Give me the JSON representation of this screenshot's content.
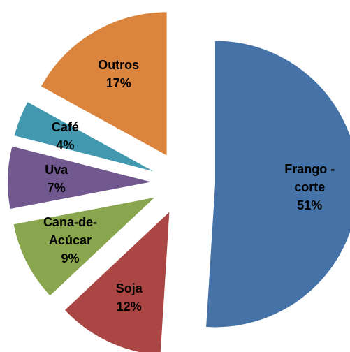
{
  "chart_data": {
    "type": "pie",
    "categories": [
      "Frango - corte",
      "Soja",
      "Cana-de-Acúcar",
      "Uva",
      "Café",
      "Outros"
    ],
    "values": [
      51,
      12,
      9,
      7,
      4,
      17
    ],
    "value_labels": [
      "51%",
      "12%",
      "9%",
      "7%",
      "4%",
      "17%"
    ],
    "colors": [
      "#4572a7",
      "#aa4643",
      "#89a54e",
      "#71588f",
      "#4198af",
      "#db843d"
    ],
    "exploded": true
  }
}
